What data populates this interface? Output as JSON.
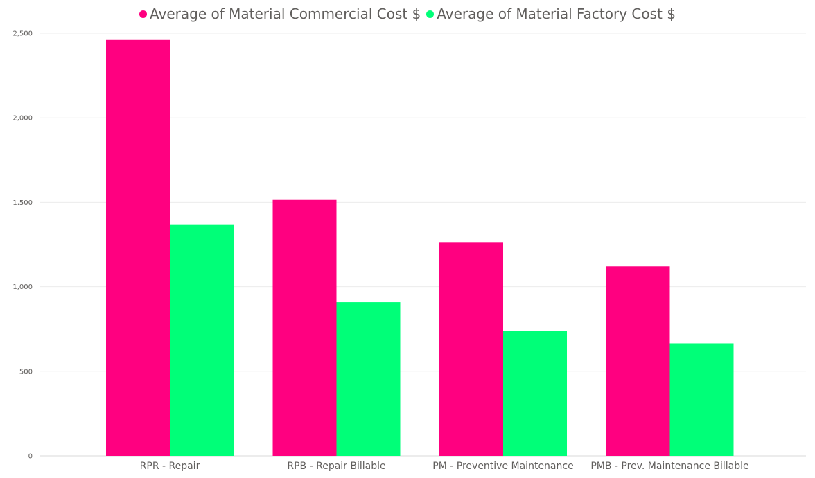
{
  "chart_data": {
    "type": "bar",
    "title": "",
    "xlabel": "",
    "ylabel": "",
    "categories": [
      "RPR - Repair",
      "RPB - Repair Billable",
      "PM - Preventive Maintenance",
      "PMB - Prev. Maintenance Billable"
    ],
    "series": [
      {
        "name": "Average of Material Commercial Cost $",
        "color": "#ff0080",
        "values": [
          2460,
          1515,
          1263,
          1120
        ]
      },
      {
        "name": "Average of Material Factory Cost $",
        "color": "#00ff78",
        "values": [
          1368,
          908,
          738,
          665
        ]
      }
    ],
    "ylim": [
      0,
      2500
    ],
    "yticks": [
      0,
      500,
      1000,
      1500,
      2000,
      2500
    ],
    "ytick_labels": [
      "0",
      "500",
      "1,000",
      "1,500",
      "2,000",
      "2,500"
    ],
    "grid": true,
    "legend_position": "top-center"
  }
}
